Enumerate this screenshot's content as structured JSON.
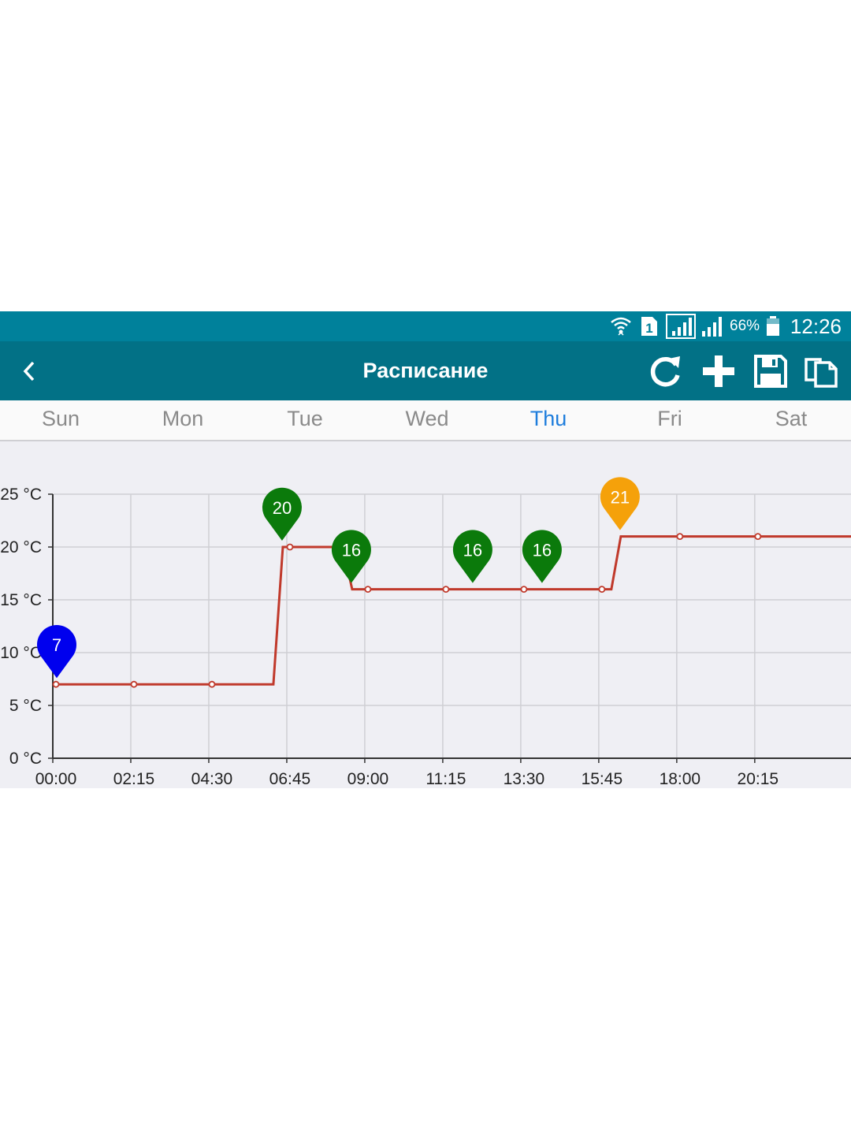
{
  "status_bar": {
    "sim_indicator": "1",
    "battery_percent": "66%",
    "time": "12:26",
    "icons": [
      "wifi-icon",
      "sim-icon",
      "signal-icon",
      "signal-icon",
      "battery-icon"
    ]
  },
  "app_bar": {
    "title": "Расписание",
    "back_icon": "chevron-left-icon",
    "actions": [
      "refresh-icon",
      "add-icon",
      "save-icon",
      "copy-icon"
    ]
  },
  "tabs": [
    {
      "label": "Sun",
      "active": false
    },
    {
      "label": "Mon",
      "active": false
    },
    {
      "label": "Tue",
      "active": false
    },
    {
      "label": "Wed",
      "active": false
    },
    {
      "label": "Thu",
      "active": true
    },
    {
      "label": "Fri",
      "active": false
    },
    {
      "label": "Sat",
      "active": false
    }
  ],
  "colors": {
    "status_bar": "#00819b",
    "app_bar": "#027186",
    "active_tab": "#1e7ddc",
    "line": "#c0392b",
    "pin_blue": "#0000ee",
    "pin_green": "#0b7a0b",
    "pin_orange": "#f5a10a"
  },
  "chart_data": {
    "type": "line",
    "step": true,
    "grid": true,
    "x_ticks": [
      "00:00",
      "02:15",
      "04:30",
      "06:45",
      "09:00",
      "11:15",
      "13:30",
      "15:45",
      "18:00",
      "20:15"
    ],
    "y_ticks": [
      "0 °C",
      "5 °C",
      "10 °C",
      "15 °C",
      "20 °C",
      "25 °C"
    ],
    "ylim": [
      0,
      25
    ],
    "xlim_minutes": [
      0,
      1440
    ],
    "series": [
      {
        "points": [
          {
            "x": "00:00",
            "y": 7
          },
          {
            "x": "02:15",
            "y": 7
          },
          {
            "x": "04:30",
            "y": 7
          },
          {
            "x": "06:45",
            "y": 20
          },
          {
            "x": "09:00",
            "y": 16
          },
          {
            "x": "11:15",
            "y": 16
          },
          {
            "x": "13:30",
            "y": 16
          },
          {
            "x": "15:45",
            "y": 16
          },
          {
            "x": "18:00",
            "y": 21
          },
          {
            "x": "20:15",
            "y": 21
          }
        ],
        "steps": [
          {
            "time": "00:00",
            "value": 7
          },
          {
            "time": "06:30",
            "value": 20
          },
          {
            "time": "08:30",
            "value": 16
          },
          {
            "time": "16:15",
            "value": 21
          }
        ]
      }
    ],
    "markers": [
      {
        "time": "00:00",
        "value": 7,
        "label": "7",
        "color": "blue"
      },
      {
        "time": "06:30",
        "value": 20,
        "label": "20",
        "color": "green"
      },
      {
        "time": "08:30",
        "value": 16,
        "label": "16",
        "color": "green"
      },
      {
        "time": "12:00",
        "value": 16,
        "label": "16",
        "color": "green"
      },
      {
        "time": "14:00",
        "value": 16,
        "label": "16",
        "color": "green"
      },
      {
        "time": "16:15",
        "value": 21,
        "label": "21",
        "color": "orange"
      }
    ]
  }
}
